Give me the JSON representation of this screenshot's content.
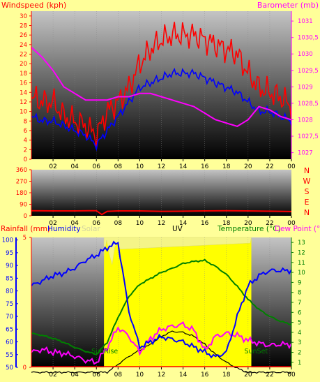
{
  "colors": {
    "background": "#ffff99",
    "wind_gust": "#ff0000",
    "wind_avg": "#0000ff",
    "barometer": "#ff00ff",
    "rainfall": "#ff0000",
    "humidity": "#0000ff",
    "solar": "#ffff00",
    "uv": "#000000",
    "temperature": "#008000",
    "dewpoint": "#ff00ff"
  },
  "chart_data": [
    {
      "type": "line",
      "title": "",
      "left_axis_label": "Windspeed (kph)",
      "right_axis_label": "Barometer (mb)",
      "x_ticks": [
        "02",
        "04",
        "06",
        "08",
        "10",
        "12",
        "14",
        "16",
        "18",
        "20",
        "22",
        "00"
      ],
      "y_left_ticks": [
        "0",
        "2",
        "4",
        "6",
        "8",
        "10",
        "12",
        "14",
        "16",
        "18",
        "20",
        "22",
        "24",
        "26",
        "28",
        "30"
      ],
      "y_left_range": [
        0,
        31
      ],
      "y_right_ticks": [
        "1027",
        "1027,5",
        "1028",
        "1028,5",
        "1029",
        "1029,5",
        "1030",
        "1030,5",
        "1031"
      ],
      "y_right_range": [
        1026.8,
        1031.3
      ],
      "hours": [
        0,
        1,
        2,
        3,
        4,
        5,
        6,
        7,
        8,
        9,
        10,
        11,
        12,
        13,
        14,
        15,
        16,
        17,
        18,
        19,
        20,
        21,
        22,
        23,
        24
      ],
      "series": [
        {
          "axis": "left",
          "values": [
            13,
            12,
            12,
            9,
            8,
            7,
            5,
            10,
            12,
            15,
            20,
            23,
            25,
            26,
            26,
            26,
            25,
            24,
            23,
            22,
            18,
            15,
            14,
            13,
            11
          ]
        },
        {
          "axis": "left",
          "values": [
            9,
            8,
            8,
            7,
            6,
            5,
            3,
            6,
            9,
            12,
            15,
            16,
            17,
            18,
            18,
            18,
            17,
            16,
            15,
            14,
            12,
            10,
            10,
            9,
            8
          ]
        },
        {
          "axis": "right",
          "values": [
            1030.2,
            1029.9,
            1029.5,
            1029.0,
            1028.8,
            1028.6,
            1028.6,
            1028.6,
            1028.7,
            1028.7,
            1028.8,
            1028.8,
            1028.7,
            1028.6,
            1028.5,
            1028.4,
            1028.2,
            1028.0,
            1027.9,
            1027.8,
            1028.0,
            1028.4,
            1028.3,
            1028.1,
            1028.0
          ]
        }
      ]
    },
    {
      "type": "line",
      "left_ticks": [
        "0",
        "90",
        "180",
        "270",
        "360"
      ],
      "y_range": [
        0,
        360
      ],
      "right_labels": [
        "N",
        "W",
        "S",
        "E",
        "N"
      ],
      "x_ticks": [
        "02",
        "04",
        "06",
        "08",
        "10",
        "12",
        "14",
        "16",
        "18",
        "20",
        "22",
        "00"
      ],
      "hours": [
        0,
        2,
        4,
        6,
        6.5,
        7,
        8,
        10,
        12,
        14,
        16,
        18,
        20,
        22,
        24
      ],
      "values": [
        40,
        38,
        38,
        40,
        10,
        35,
        38,
        38,
        35,
        36,
        38,
        40,
        38,
        36,
        33
      ]
    },
    {
      "type": "line",
      "legend": [
        "Rainfall (mm)",
        "Humidity",
        "Solar",
        "UV",
        "Temperature (°C)",
        "Dew Point (°C)"
      ],
      "x_ticks": [
        "02",
        "04",
        "06",
        "08",
        "10",
        "12",
        "14",
        "16",
        "18",
        "20",
        "22",
        "00"
      ],
      "humidity_ticks": [
        "50",
        "55",
        "60",
        "65",
        "70",
        "75",
        "80",
        "85",
        "90",
        "95",
        "100"
      ],
      "humidity_range": [
        50,
        101
      ],
      "rain_ticks": [
        "0",
        "5"
      ],
      "rain_range": [
        0,
        5
      ],
      "temp_ticks": [
        "1",
        "2",
        "3",
        "4",
        "5",
        "6",
        "7",
        "8",
        "9",
        "10",
        "11",
        "12",
        "13"
      ],
      "temp_range": [
        0.5,
        13.5
      ],
      "annotations": [
        "SunRise",
        "SunSet"
      ],
      "daylight_hours": [
        6.7,
        20.3
      ],
      "hours": [
        0,
        1,
        2,
        3,
        4,
        5,
        6,
        7,
        8,
        9,
        10,
        11,
        12,
        13,
        14,
        15,
        16,
        17,
        18,
        19,
        20,
        21,
        22,
        23,
        24
      ],
      "series": [
        {
          "axis": "humidity",
          "values": [
            82,
            84,
            86,
            87,
            89,
            92,
            94,
            97,
            99,
            72,
            58,
            60,
            62,
            61,
            60,
            58,
            56,
            54,
            56,
            70,
            82,
            86,
            88,
            88,
            88
          ]
        },
        {
          "axis": "temp",
          "values": [
            3.9,
            3.7,
            3.4,
            3.0,
            2.5,
            2.1,
            1.8,
            3.0,
            5.5,
            7.6,
            8.8,
            9.4,
            10.0,
            10.4,
            10.9,
            11.1,
            11.2,
            10.6,
            9.8,
            8.6,
            7.3,
            6.3,
            5.6,
            5.1,
            4.8
          ]
        },
        {
          "axis": "temp",
          "values": [
            2.0,
            2.3,
            2.0,
            1.9,
            1.6,
            1.2,
            1.0,
            2.5,
            4.5,
            3.6,
            2.0,
            3.4,
            4.3,
            4.6,
            4.8,
            4.2,
            2.2,
            3.6,
            3.9,
            3.7,
            3.2,
            2.9,
            2.7,
            2.8,
            2.8
          ]
        },
        {
          "axis": "temp",
          "values": [
            0,
            0,
            0,
            0,
            0,
            0,
            0,
            0,
            0.8,
            1.6,
            2.2,
            2.8,
            3.6,
            4.1,
            4.0,
            3.6,
            2.8,
            1.8,
            1.0,
            0.4,
            0,
            0,
            0,
            0,
            0
          ]
        },
        {
          "axis": "humidity",
          "values": [
            50,
            50,
            50,
            50,
            50,
            50,
            50,
            50,
            50,
            50,
            50,
            50,
            50,
            50,
            50,
            50,
            50,
            50,
            50,
            50,
            50,
            50,
            50,
            50,
            50
          ]
        }
      ]
    }
  ]
}
